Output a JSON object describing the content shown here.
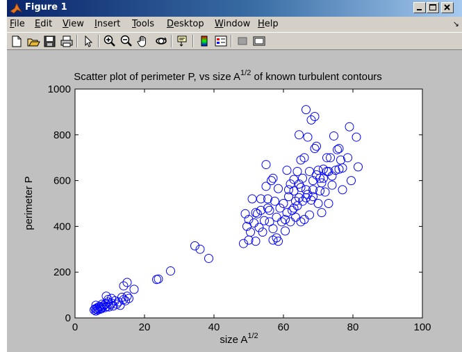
{
  "window": {
    "title": "Figure 1",
    "colors": {
      "titlebar_start": "#0a246a",
      "face": "#d4d0c8",
      "figure_bg": "#c0c0c0",
      "marker": "#0000ff"
    }
  },
  "menu": {
    "items": [
      {
        "label": "File"
      },
      {
        "label": "Edit"
      },
      {
        "label": "View"
      },
      {
        "label": "Insert"
      },
      {
        "label": "Tools"
      },
      {
        "label": "Desktop"
      },
      {
        "label": "Window"
      },
      {
        "label": "Help"
      }
    ],
    "extra_icon": "arrow-icon"
  },
  "toolbar": {
    "icons": [
      "new-figure-icon",
      "open-file-icon",
      "save-icon",
      "print-icon",
      "edit-plot-arrow-icon",
      "zoom-in-icon",
      "zoom-out-icon",
      "pan-hand-icon",
      "rotate-3d-icon",
      "data-cursor-icon",
      "colorbar-icon",
      "legend-icon",
      "hide-plot-tools-icon",
      "show-plot-tools-icon"
    ]
  },
  "chart_data": {
    "type": "scatter",
    "title_main": "Scatter plot of perimeter P, vs size A",
    "title_sup": "1/2",
    "title_rest": " of known turbulent contours",
    "xlabel_main": "size A",
    "xlabel_sup": "1/2",
    "ylabel": "perimeter P",
    "xlim": [
      0,
      100
    ],
    "ylim": [
      0,
      1000
    ],
    "xticks": [
      0,
      20,
      40,
      60,
      80,
      100
    ],
    "yticks": [
      0,
      200,
      400,
      600,
      800,
      1000
    ],
    "marker": "circle-open",
    "grid": false,
    "series": [
      {
        "points": [
          [
            5.5,
            35
          ],
          [
            5.8,
            40
          ],
          [
            6.0,
            30
          ],
          [
            6.2,
            38
          ],
          [
            6.4,
            45
          ],
          [
            6.6,
            35
          ],
          [
            6.8,
            42
          ],
          [
            7.0,
            50
          ],
          [
            7.2,
            38
          ],
          [
            7.4,
            45
          ],
          [
            6.0,
            55
          ],
          [
            7.6,
            40
          ],
          [
            7.8,
            60
          ],
          [
            8.0,
            48
          ],
          [
            8.3,
            55
          ],
          [
            8.6,
            45
          ],
          [
            8.9,
            62
          ],
          [
            9.2,
            50
          ],
          [
            9.5,
            70
          ],
          [
            9.8,
            48
          ],
          [
            10.2,
            58
          ],
          [
            10.5,
            65
          ],
          [
            11.0,
            52
          ],
          [
            11.5,
            75
          ],
          [
            12.0,
            60
          ],
          [
            9.0,
            95
          ],
          [
            9.5,
            80
          ],
          [
            10.5,
            85
          ],
          [
            12.5,
            70
          ],
          [
            13.0,
            55
          ],
          [
            13.5,
            90
          ],
          [
            14.0,
            80
          ],
          [
            14.5,
            75
          ],
          [
            15.0,
            95
          ],
          [
            15.5,
            85
          ],
          [
            14.0,
            140
          ],
          [
            15.0,
            155
          ],
          [
            17.0,
            125
          ],
          [
            23.5,
            168
          ],
          [
            24.0,
            170
          ],
          [
            27.5,
            205
          ],
          [
            34.5,
            315
          ],
          [
            36.0,
            300
          ],
          [
            38.5,
            260
          ],
          [
            48.5,
            325
          ],
          [
            49.0,
            455
          ],
          [
            49.5,
            400
          ],
          [
            50.0,
            430
          ],
          [
            50.5,
            375
          ],
          [
            51.0,
            520
          ],
          [
            51.5,
            415
          ],
          [
            52.0,
            335
          ],
          [
            52.5,
            455
          ],
          [
            53.0,
            395
          ],
          [
            53.5,
            520
          ],
          [
            53.5,
            470
          ],
          [
            54.0,
            375
          ],
          [
            54.5,
            425
          ],
          [
            55.0,
            575
          ],
          [
            55.0,
            670
          ],
          [
            55.5,
            520
          ],
          [
            56.0,
            420
          ],
          [
            56.0,
            470
          ],
          [
            56.5,
            600
          ],
          [
            57.0,
            390
          ],
          [
            57.0,
            340
          ],
          [
            57.5,
            510
          ],
          [
            58.0,
            440
          ],
          [
            58.5,
            565
          ],
          [
            58.5,
            335
          ],
          [
            59.0,
            480
          ],
          [
            59.5,
            420
          ],
          [
            60.0,
            500
          ],
          [
            60.5,
            380
          ],
          [
            61.0,
            460
          ],
          [
            61.0,
            645
          ],
          [
            61.5,
            530
          ],
          [
            62.0,
            420
          ],
          [
            62.0,
            585
          ],
          [
            62.5,
            470
          ],
          [
            63.0,
            555
          ],
          [
            63.0,
            605
          ],
          [
            63.5,
            510
          ],
          [
            63.5,
            440
          ],
          [
            64.0,
            490
          ],
          [
            64.0,
            640
          ],
          [
            64.5,
            525
          ],
          [
            64.5,
            800
          ],
          [
            65.0,
            570
          ],
          [
            65.0,
            690
          ],
          [
            65.5,
            510
          ],
          [
            65.5,
            610
          ],
          [
            66.0,
            430
          ],
          [
            66.0,
            700
          ],
          [
            66.5,
            910
          ],
          [
            66.5,
            560
          ],
          [
            67.0,
            540
          ],
          [
            67.0,
            790
          ],
          [
            67.5,
            450
          ],
          [
            67.5,
            640
          ],
          [
            68.0,
            515
          ],
          [
            68.0,
            865
          ],
          [
            68.5,
            600
          ],
          [
            68.5,
            560
          ],
          [
            69.0,
            880
          ],
          [
            69.0,
            740
          ],
          [
            69.5,
            625
          ],
          [
            69.5,
            750
          ],
          [
            70.0,
            500
          ],
          [
            70.0,
            645
          ],
          [
            70.5,
            555
          ],
          [
            70.5,
            610
          ],
          [
            71.0,
            460
          ],
          [
            71.0,
            590
          ],
          [
            71.5,
            650
          ],
          [
            72.0,
            550
          ],
          [
            72.5,
            700
          ],
          [
            72.5,
            640
          ],
          [
            73.0,
            500
          ],
          [
            73.5,
            700
          ],
          [
            74.0,
            620
          ],
          [
            74.0,
            580
          ],
          [
            74.5,
            795
          ],
          [
            75.0,
            645
          ],
          [
            75.5,
            735
          ],
          [
            76.0,
            650
          ],
          [
            76.0,
            740
          ],
          [
            76.5,
            690
          ],
          [
            77.0,
            560
          ],
          [
            77.0,
            655
          ],
          [
            78.5,
            700
          ],
          [
            79.0,
            835
          ],
          [
            79.5,
            600
          ],
          [
            81.0,
            790
          ],
          [
            81.5,
            660
          ],
          [
            65.0,
            420
          ],
          [
            63.0,
            480
          ],
          [
            60.5,
            430
          ],
          [
            58.0,
            350
          ],
          [
            57.0,
            610
          ],
          [
            55.5,
            480
          ],
          [
            52.0,
            460
          ],
          [
            50.0,
            340
          ],
          [
            61.5,
            560
          ],
          [
            68.5,
            530
          ],
          [
            71.5,
            610
          ],
          [
            73.0,
            640
          ],
          [
            66.5,
            525
          ],
          [
            64.5,
            585
          ]
        ]
      }
    ]
  }
}
